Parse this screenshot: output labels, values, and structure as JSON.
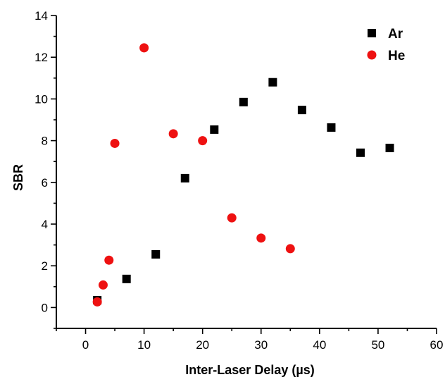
{
  "chart_data": {
    "type": "scatter",
    "xlabel": "Inter-Laser Delay (µs)",
    "ylabel": "SBR",
    "xlim": [
      -5,
      60
    ],
    "ylim": [
      -1,
      14
    ],
    "x_ticks": [
      "0",
      "10",
      "20",
      "30",
      "40",
      "50",
      "60"
    ],
    "y_ticks": [
      "0",
      "2",
      "4",
      "6",
      "8",
      "10",
      "12",
      "14"
    ],
    "grid": false,
    "legend_position": "top-right",
    "series": [
      {
        "name": "Ar",
        "marker": "square",
        "color": "#000000",
        "x": [
          2,
          7,
          12,
          17,
          22,
          27,
          32,
          37,
          42,
          47,
          52
        ],
        "y": [
          0.35,
          1.37,
          2.55,
          6.2,
          8.53,
          9.85,
          10.8,
          9.47,
          8.63,
          7.42,
          7.65
        ]
      },
      {
        "name": "He",
        "marker": "circle",
        "color": "#ee1111",
        "x": [
          2,
          3,
          4,
          5,
          10,
          15,
          20,
          25,
          30,
          35
        ],
        "y": [
          0.27,
          1.08,
          2.27,
          7.87,
          12.45,
          8.33,
          8.0,
          4.3,
          3.33,
          2.82
        ]
      }
    ]
  }
}
